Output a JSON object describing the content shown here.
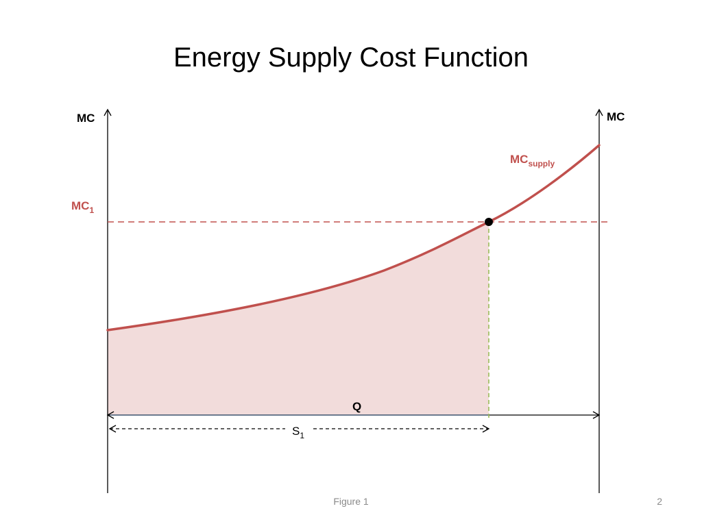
{
  "slide": {
    "title": "Energy Supply Cost Function",
    "footer": "Figure 1",
    "page_number": "2"
  },
  "diagram": {
    "left_axis_label": "MC",
    "right_axis_label": "MC",
    "curve_label_main": "MC",
    "curve_label_sub": "supply",
    "price_label_main": "MC",
    "price_label_sub": "1",
    "quantity_label": "Q",
    "supply_label_main": "S",
    "supply_label_sub": "1"
  },
  "colors": {
    "curve": "#c0504d",
    "shaded_area": "#f2dcdb",
    "axis": "#000000",
    "caption": "#8a8a8a"
  }
}
